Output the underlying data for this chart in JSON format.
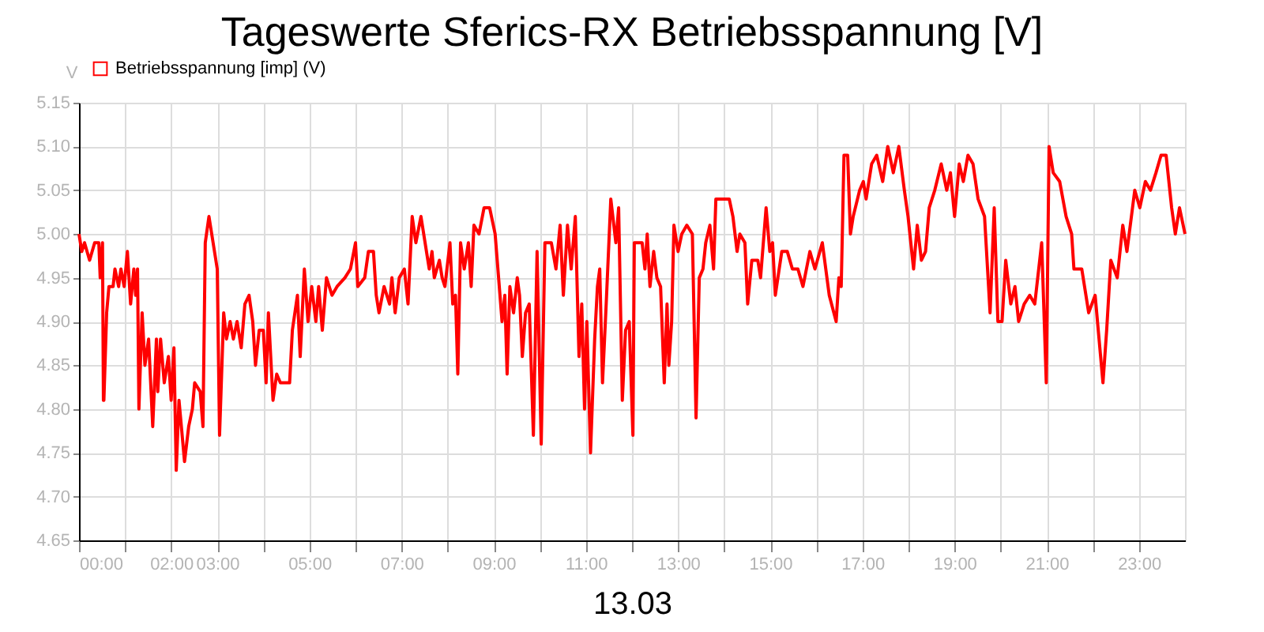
{
  "chart_data": {
    "type": "line",
    "title": "Tageswerte Sferics-RX Betriebsspannung [V]",
    "xlabel": "13.03",
    "ylabel": "V",
    "x": [
      0,
      0.06,
      0.12,
      0.23,
      0.34,
      0.43,
      0.46,
      0.51,
      0.53,
      0.54,
      0.6,
      0.65,
      0.74,
      0.78,
      0.86,
      0.91,
      0.98,
      1.05,
      1.12,
      1.19,
      1.23,
      1.27,
      1.3,
      1.37,
      1.43,
      1.51,
      1.6,
      1.68,
      1.71,
      1.77,
      1.85,
      1.94,
      2.0,
      2.06,
      2.11,
      2.17,
      2.29,
      2.38,
      2.46,
      2.51,
      2.63,
      2.69,
      2.74,
      2.82,
      2.91,
      3.0,
      3.05,
      3.14,
      3.2,
      3.28,
      3.35,
      3.43,
      3.52,
      3.6,
      3.69,
      3.77,
      3.83,
      3.91,
      4.0,
      4.06,
      4.11,
      4.21,
      4.29,
      4.37,
      4.46,
      4.57,
      4.63,
      4.74,
      4.8,
      4.89,
      4.97,
      5.05,
      5.14,
      5.2,
      5.28,
      5.37,
      5.49,
      5.6,
      5.77,
      5.89,
      6.0,
      6.05,
      6.2,
      6.28,
      6.39,
      6.45,
      6.51,
      6.62,
      6.74,
      6.79,
      6.86,
      6.95,
      7.06,
      7.14,
      7.23,
      7.31,
      7.42,
      7.54,
      7.6,
      7.66,
      7.71,
      7.82,
      7.88,
      7.94,
      8.05,
      8.11,
      8.17,
      8.22,
      8.28,
      8.36,
      8.45,
      8.51,
      8.57,
      8.68,
      8.79,
      8.91,
      9.03,
      9.18,
      9.24,
      9.29,
      9.35,
      9.43,
      9.51,
      9.56,
      9.62,
      9.69,
      9.77,
      9.86,
      9.94,
      10.03,
      10.11,
      10.25,
      10.35,
      10.44,
      10.51,
      10.6,
      10.68,
      10.77,
      10.85,
      10.91,
      10.97,
      11.02,
      11.1,
      11.19,
      11.25,
      11.3,
      11.36,
      11.44,
      11.54,
      11.65,
      11.71,
      11.79,
      11.86,
      11.94,
      12.02,
      12.05,
      12.22,
      12.28,
      12.33,
      12.39,
      12.47,
      12.54,
      12.62,
      12.7,
      12.76,
      12.8,
      12.86,
      12.91,
      13.0,
      13.08,
      13.19,
      13.31,
      13.39,
      13.46,
      13.54,
      13.6,
      13.69,
      13.77,
      13.82,
      13.99,
      14.11,
      14.19,
      14.28,
      14.34,
      14.45,
      14.51,
      14.6,
      14.73,
      14.79,
      14.91,
      14.99,
      15.05,
      15.11,
      15.25,
      15.37,
      15.48,
      15.6,
      15.71,
      15.86,
      15.97,
      16.13,
      16.28,
      16.43,
      16.49,
      16.54,
      16.6,
      16.68,
      16.74,
      16.8,
      16.94,
      17.02,
      17.08,
      17.2,
      17.31,
      17.44,
      17.55,
      17.67,
      17.79,
      17.91,
      17.99,
      18.11,
      18.19,
      18.28,
      18.37,
      18.45,
      18.57,
      18.71,
      18.83,
      18.91,
      19.0,
      19.1,
      19.19,
      19.29,
      19.4,
      19.51,
      19.65,
      19.77,
      19.86,
      19.94,
      20.03,
      20.11,
      20.22,
      20.31,
      20.39,
      20.51,
      20.63,
      20.74,
      20.89,
      20.99,
      21.05,
      21.14,
      21.28,
      21.42,
      21.54,
      21.59,
      21.76,
      21.91,
      22.05,
      22.22,
      22.3,
      22.39,
      22.53,
      22.65,
      22.74,
      22.91,
      23.02,
      23.14,
      23.25,
      23.37,
      23.48,
      23.59,
      23.71,
      23.79,
      23.88,
      24.0
    ],
    "series": [
      {
        "name": "Betriebsspannung [imp] (V)",
        "color": "#ff0000",
        "values": [
          5.0,
          4.98,
          4.99,
          4.97,
          4.99,
          4.99,
          4.95,
          4.99,
          4.81,
          4.81,
          4.91,
          4.94,
          4.94,
          4.96,
          4.94,
          4.96,
          4.94,
          4.98,
          4.92,
          4.96,
          4.93,
          4.96,
          4.8,
          4.91,
          4.85,
          4.88,
          4.78,
          4.88,
          4.82,
          4.88,
          4.83,
          4.86,
          4.81,
          4.87,
          4.73,
          4.81,
          4.74,
          4.78,
          4.8,
          4.83,
          4.82,
          4.78,
          4.99,
          5.02,
          4.99,
          4.96,
          4.77,
          4.91,
          4.88,
          4.9,
          4.88,
          4.9,
          4.87,
          4.92,
          4.93,
          4.9,
          4.85,
          4.89,
          4.89,
          4.83,
          4.91,
          4.81,
          4.84,
          4.83,
          4.83,
          4.83,
          4.89,
          4.93,
          4.86,
          4.96,
          4.9,
          4.94,
          4.9,
          4.94,
          4.89,
          4.95,
          4.93,
          4.94,
          4.95,
          4.96,
          4.99,
          4.94,
          4.95,
          4.98,
          4.98,
          4.93,
          4.91,
          4.94,
          4.92,
          4.95,
          4.91,
          4.95,
          4.96,
          4.92,
          5.02,
          4.99,
          5.02,
          4.98,
          4.96,
          4.98,
          4.95,
          4.97,
          4.95,
          4.94,
          4.99,
          4.92,
          4.93,
          4.84,
          4.99,
          4.96,
          4.99,
          4.94,
          5.01,
          5.0,
          5.03,
          5.03,
          5.0,
          4.9,
          4.93,
          4.84,
          4.94,
          4.91,
          4.95,
          4.93,
          4.86,
          4.91,
          4.92,
          4.77,
          4.98,
          4.76,
          4.99,
          4.99,
          4.96,
          5.01,
          4.93,
          5.01,
          4.96,
          5.02,
          4.86,
          4.92,
          4.8,
          4.9,
          4.75,
          4.88,
          4.94,
          4.96,
          4.83,
          4.92,
          5.04,
          4.99,
          5.03,
          4.81,
          4.89,
          4.9,
          4.77,
          4.99,
          4.99,
          4.96,
          5.0,
          4.94,
          4.98,
          4.95,
          4.94,
          4.83,
          4.92,
          4.85,
          4.9,
          5.01,
          4.98,
          5.0,
          5.01,
          5.0,
          4.79,
          4.95,
          4.96,
          4.99,
          5.01,
          4.96,
          5.04,
          5.04,
          5.04,
          5.02,
          4.98,
          5.0,
          4.99,
          4.92,
          4.97,
          4.97,
          4.95,
          5.03,
          4.98,
          4.99,
          4.93,
          4.98,
          4.98,
          4.96,
          4.96,
          4.94,
          4.98,
          4.96,
          4.99,
          4.93,
          4.9,
          4.95,
          4.94,
          5.09,
          5.09,
          5.0,
          5.02,
          5.05,
          5.06,
          5.04,
          5.08,
          5.09,
          5.06,
          5.1,
          5.07,
          5.1,
          5.05,
          5.02,
          4.96,
          5.01,
          4.97,
          4.98,
          5.03,
          5.05,
          5.08,
          5.05,
          5.07,
          5.02,
          5.08,
          5.06,
          5.09,
          5.08,
          5.04,
          5.02,
          4.91,
          5.03,
          4.9,
          4.9,
          4.97,
          4.92,
          4.94,
          4.9,
          4.92,
          4.93,
          4.92,
          4.99,
          4.83,
          5.1,
          5.07,
          5.06,
          5.02,
          5.0,
          4.96,
          4.96,
          4.91,
          4.93,
          4.83,
          4.89,
          4.97,
          4.95,
          5.01,
          4.98,
          5.05,
          5.03,
          5.06,
          5.05,
          5.07,
          5.09,
          5.09,
          5.03,
          5.0,
          5.03,
          5.0
        ]
      }
    ],
    "xlim": [
      0,
      24
    ],
    "xticks": [
      {
        "value": 0,
        "label": "00:00"
      },
      {
        "value": 1,
        "label": null
      },
      {
        "value": 2,
        "label": "02:00"
      },
      {
        "value": 3,
        "label": "03:00"
      },
      {
        "value": 4,
        "label": null
      },
      {
        "value": 5,
        "label": "05:00"
      },
      {
        "value": 6,
        "label": null
      },
      {
        "value": 7,
        "label": "07:00"
      },
      {
        "value": 8,
        "label": null
      },
      {
        "value": 9,
        "label": "09:00"
      },
      {
        "value": 10,
        "label": null
      },
      {
        "value": 11,
        "label": "11:00"
      },
      {
        "value": 12,
        "label": null
      },
      {
        "value": 13,
        "label": "13:00"
      },
      {
        "value": 14,
        "label": null
      },
      {
        "value": 15,
        "label": "15:00"
      },
      {
        "value": 16,
        "label": null
      },
      {
        "value": 17,
        "label": "17:00"
      },
      {
        "value": 18,
        "label": null
      },
      {
        "value": 19,
        "label": "19:00"
      },
      {
        "value": 20,
        "label": null
      },
      {
        "value": 21,
        "label": "21:00"
      },
      {
        "value": 22,
        "label": null
      },
      {
        "value": 23,
        "label": "23:00"
      }
    ],
    "ylim": [
      4.65,
      5.15
    ],
    "yticks": [
      {
        "value": 4.65,
        "label": "4.65"
      },
      {
        "value": 4.7,
        "label": "4.70"
      },
      {
        "value": 4.75,
        "label": "4.75"
      },
      {
        "value": 4.8,
        "label": "4.80"
      },
      {
        "value": 4.85,
        "label": "4.85"
      },
      {
        "value": 4.9,
        "label": "4.90"
      },
      {
        "value": 4.95,
        "label": "4.95"
      },
      {
        "value": 5.0,
        "label": "5.00"
      },
      {
        "value": 5.05,
        "label": "5.05"
      },
      {
        "value": 5.1,
        "label": "5.10"
      },
      {
        "value": 5.15,
        "label": "5.15"
      }
    ],
    "grid": true,
    "legend": "top left",
    "marker": "none",
    "line_style": "solid"
  }
}
